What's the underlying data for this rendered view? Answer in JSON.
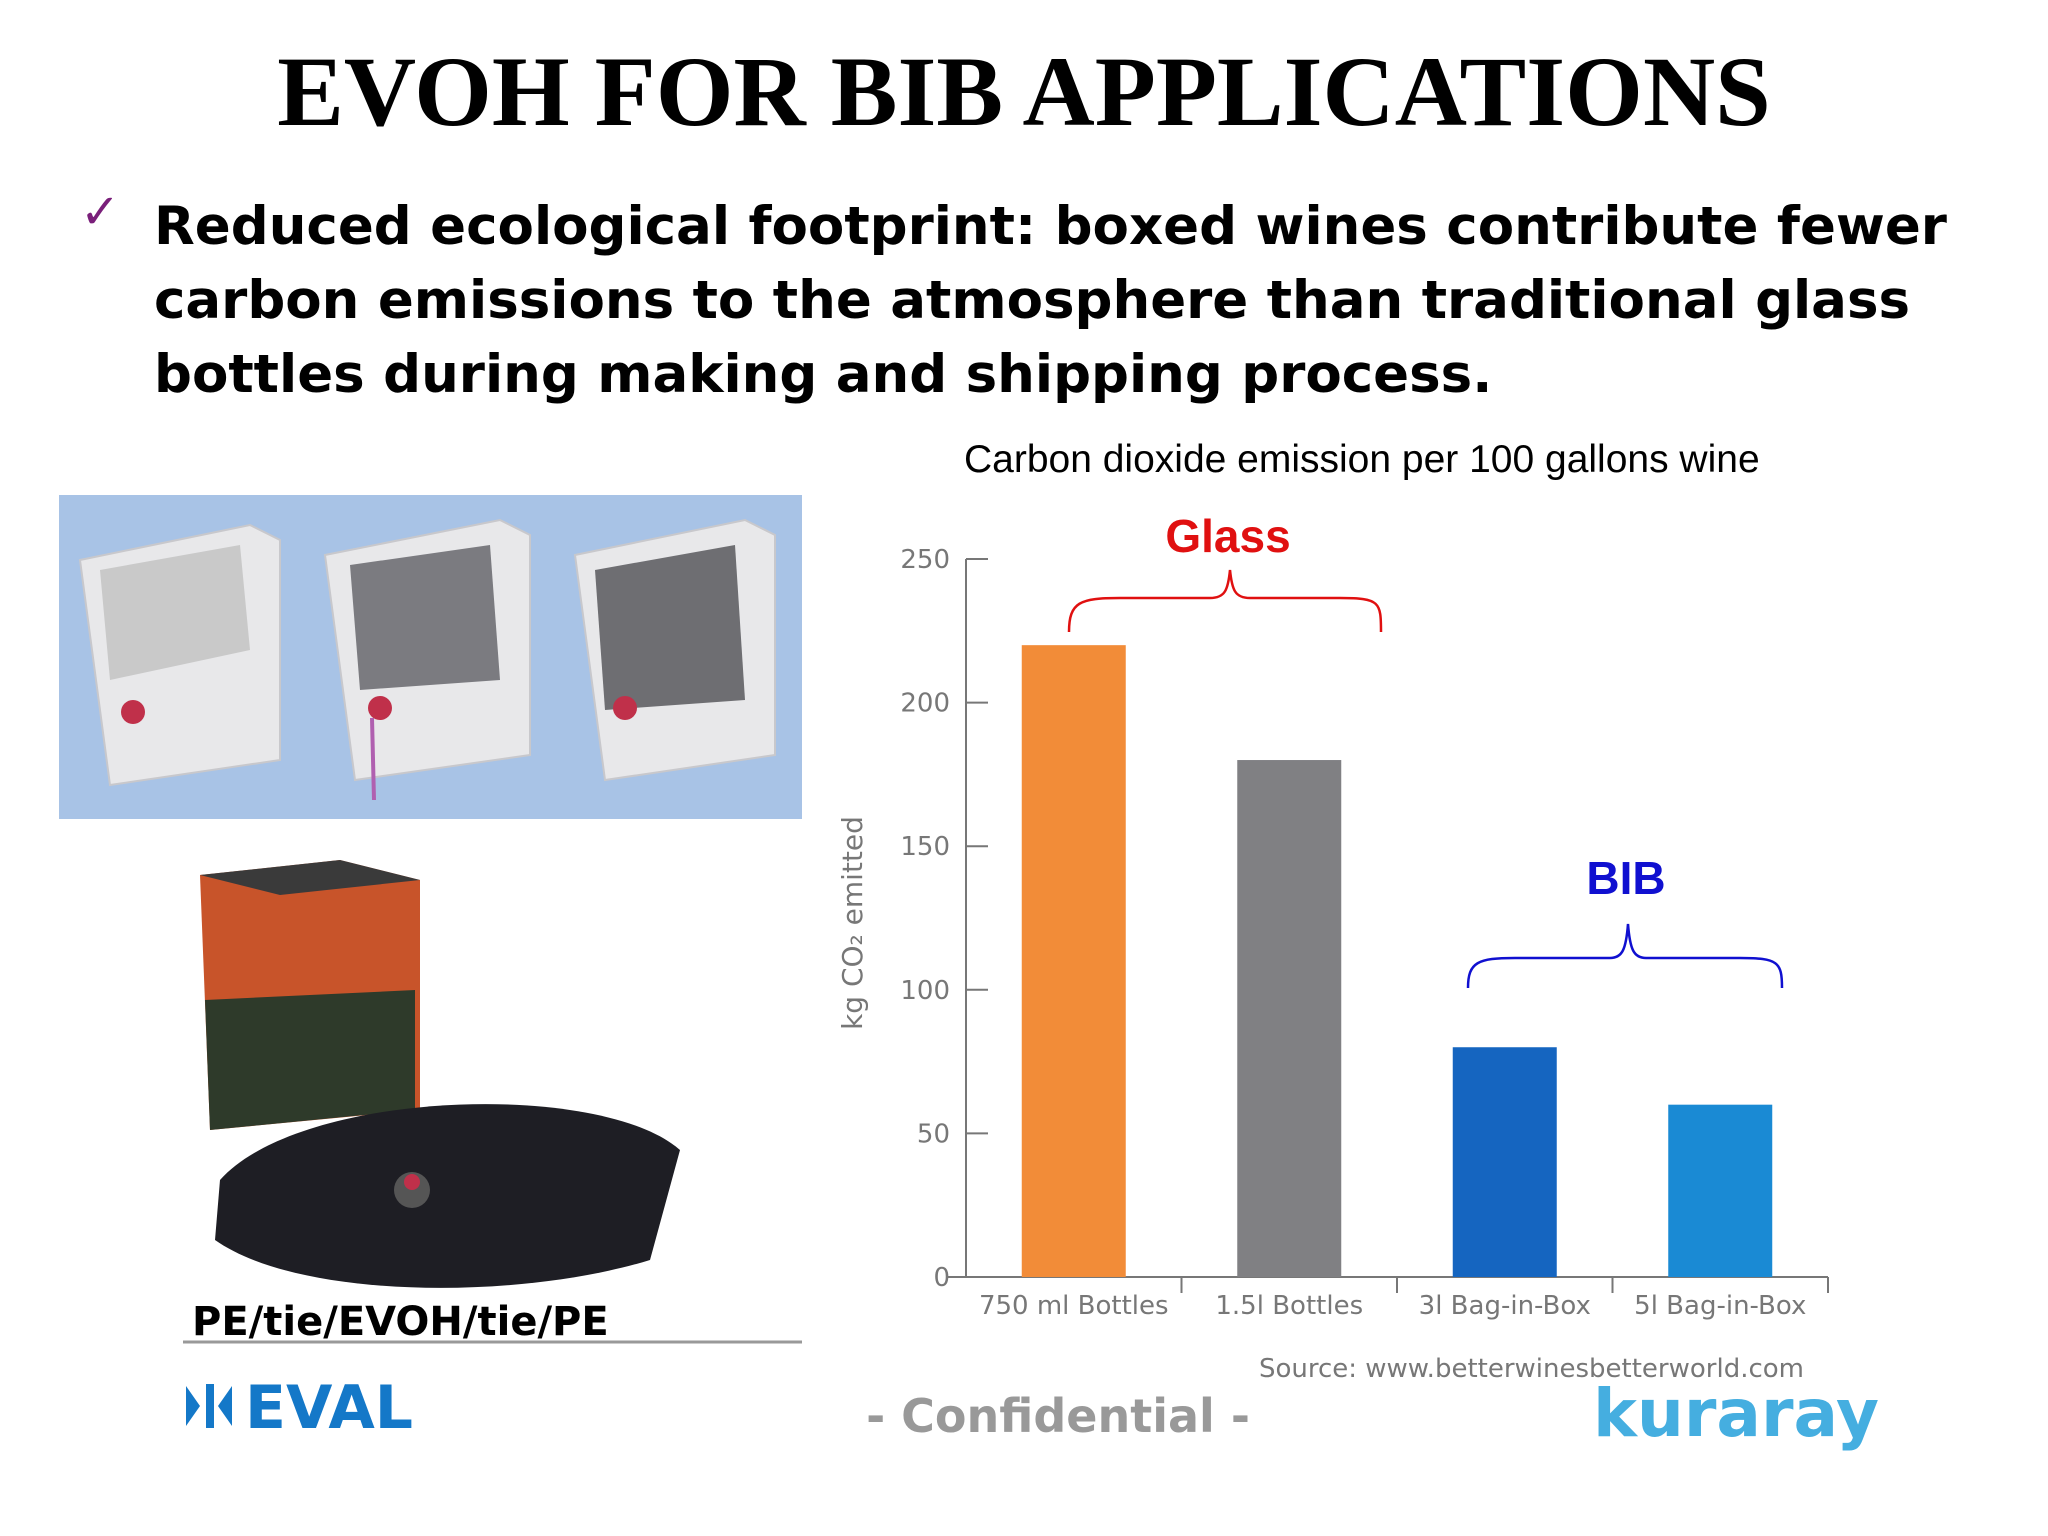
{
  "header": {
    "title": "EVOH FOR BIB APPLICATIONS"
  },
  "bullet": {
    "lines": [
      "Reduced ecological footprint: boxed wines contribute fewer",
      "carbon emissions to the atmosphere than traditional glass",
      "bottles during making and shipping process."
    ]
  },
  "structure_label": "PE/tie/EVOH/tie/PE",
  "footer": {
    "logo": "EVAL",
    "confidential": "- Confidential -",
    "brand": "kuraray"
  },
  "chart_data": {
    "type": "bar",
    "title": "Carbon dioxide emission per 100 gallons wine",
    "y_label": "kg CO₂ emitted",
    "categories": [
      "750 ml Bottles",
      "1.5l Bottles",
      "3l Bag-in-Box",
      "5l Bag-in-Box"
    ],
    "values": [
      220,
      180,
      80,
      60
    ],
    "colors": [
      "#f28c38",
      "#808083",
      "#1565c0",
      "#1a8ad4"
    ],
    "ylim": [
      0,
      250
    ],
    "yticks": [
      0,
      50,
      100,
      150,
      200,
      250
    ],
    "grid": false,
    "annotations": [
      "Glass",
      "BIB"
    ],
    "source": "Source: www.betterwinesbetterworld.com"
  }
}
